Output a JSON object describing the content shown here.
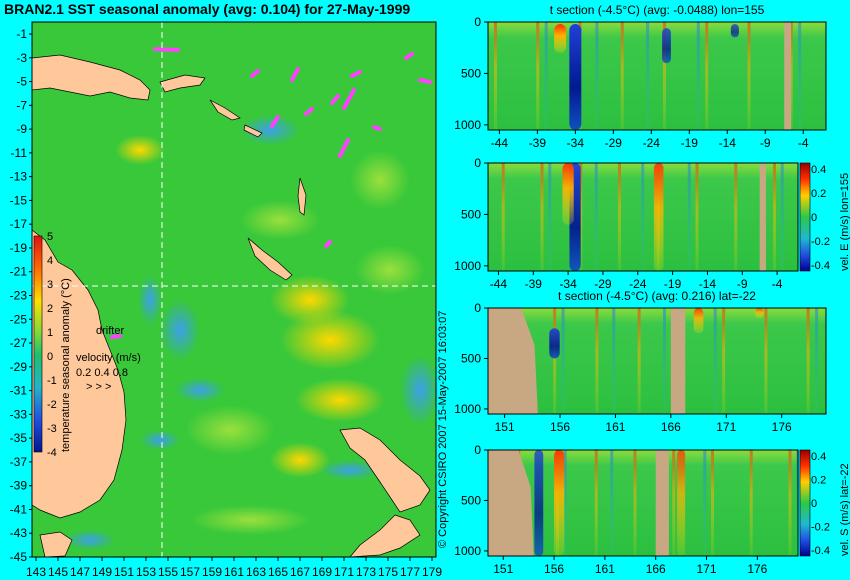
{
  "main_title": "BRAN2.1 SST seasonal anomaly (avg: 0.104) for 27-May-1999",
  "copyright": "© Copyright CSIRO 2007  15-May-2007 16:03:07",
  "colors": {
    "background": "#00ffff",
    "land": "#ffc89a",
    "section_land": "#c8a882",
    "ocean": "#3cc83c",
    "drifter": "#ff40ff",
    "crosshair": "#ffffff"
  },
  "map": {
    "lon_ticks": [
      "143",
      "145",
      "147",
      "149",
      "151",
      "153",
      "155",
      "157",
      "159",
      "161",
      "163",
      "165",
      "167",
      "169",
      "171",
      "173",
      "175",
      "177",
      "179"
    ],
    "lat_ticks": [
      "-1",
      "-3",
      "-5",
      "-7",
      "-9",
      "-11",
      "-13",
      "-15",
      "-17",
      "-19",
      "-21",
      "-23",
      "-25",
      "-27",
      "-29",
      "-31",
      "-33",
      "-35",
      "-37",
      "-39",
      "-41",
      "-43",
      "-45"
    ],
    "colorbar_title": "temperature seasonal anomaly (°C)",
    "colorbar_ticks": [
      "5",
      "4",
      "3",
      "2",
      "1",
      "0",
      "-1",
      "-2",
      "-3",
      "-4"
    ],
    "drifter_label": "drifter",
    "velocity_title": "velocity (m/s)",
    "velocity_scale": "0.2 0.4 0.8",
    "velocity_arrows": "> > >"
  },
  "chart_data": [
    {
      "type": "heatmap",
      "title": "t section (-4.5°C) (avg: -0.0488) lon=155",
      "x_ticks": [
        "-44",
        "-39",
        "-34",
        "-29",
        "-24",
        "-19",
        "-14",
        "-9",
        "-4"
      ],
      "y_ticks": [
        "0",
        "500",
        "1000"
      ],
      "xlim": [
        -45.5,
        -1
      ],
      "ylim": [
        1050,
        0
      ],
      "features": [
        {
          "x": -34,
          "depth_top": 20,
          "depth_bottom": 1050,
          "anomaly": "negative",
          "strength": 1.0
        },
        {
          "x": -36,
          "depth_top": 20,
          "depth_bottom": 300,
          "anomaly": "positive",
          "strength": 1.0
        },
        {
          "x": -22,
          "depth_top": 60,
          "depth_bottom": 400,
          "anomaly": "negative",
          "strength": 0.6
        },
        {
          "x": -13,
          "depth_top": 20,
          "depth_bottom": 150,
          "anomaly": "negative",
          "strength": 0.5
        }
      ]
    },
    {
      "type": "heatmap",
      "title": "",
      "x_ticks": [
        "-44",
        "-39",
        "-34",
        "-29",
        "-24",
        "-19",
        "-14",
        "-9",
        "-4"
      ],
      "y_ticks": [
        "0",
        "500",
        "1000"
      ],
      "xlim": [
        -45.5,
        -1
      ],
      "ylim": [
        1050,
        0
      ],
      "colorbar_label": "vel. E (m/s) lon=155",
      "colorbar_ticks": [
        "0.4",
        "0.2",
        "0",
        "-0.2",
        "-0.4"
      ],
      "features": [
        {
          "x": -33,
          "depth_top": 0,
          "depth_bottom": 1050,
          "anomaly": "negative",
          "strength": 0.9
        },
        {
          "x": -34,
          "depth_top": 0,
          "depth_bottom": 600,
          "anomaly": "positive",
          "strength": 0.9
        },
        {
          "x": -21,
          "depth_top": 0,
          "depth_bottom": 1050,
          "anomaly": "positive",
          "strength": 0.7
        }
      ]
    },
    {
      "type": "heatmap",
      "title": "t section (-4.5°C) (avg: 0.216) lat=-22",
      "x_ticks": [
        "151",
        "156",
        "161",
        "166",
        "171",
        "176"
      ],
      "y_ticks": [
        "0",
        "500",
        "1000"
      ],
      "xlim": [
        149.5,
        180
      ],
      "ylim": [
        1050,
        0
      ],
      "features": [
        {
          "x": 155.5,
          "depth_top": 200,
          "depth_bottom": 500,
          "anomaly": "negative",
          "strength": 0.8
        },
        {
          "x": 168.5,
          "depth_top": 0,
          "depth_bottom": 250,
          "anomaly": "positive",
          "strength": 0.7
        },
        {
          "x": 174,
          "depth_top": 0,
          "depth_bottom": 100,
          "anomaly": "positive",
          "strength": 0.6
        }
      ]
    },
    {
      "type": "heatmap",
      "title": "",
      "x_ticks": [
        "151",
        "156",
        "161",
        "166",
        "171",
        "176"
      ],
      "y_ticks": [
        "0",
        "500",
        "1000"
      ],
      "xlim": [
        149.5,
        180
      ],
      "ylim": [
        1050,
        0
      ],
      "colorbar_label": "vel. S (m/s) lat=-22",
      "colorbar_ticks": [
        "0.4",
        "0.2",
        "0",
        "-0.2",
        "-0.4"
      ],
      "features": [
        {
          "x": 156.5,
          "depth_top": 0,
          "depth_bottom": 1050,
          "anomaly": "positive",
          "strength": 0.8
        },
        {
          "x": 154.5,
          "depth_top": 0,
          "depth_bottom": 1050,
          "anomaly": "negative",
          "strength": 0.6
        },
        {
          "x": 168.5,
          "depth_top": 0,
          "depth_bottom": 1050,
          "anomaly": "positive",
          "strength": 0.5
        }
      ]
    }
  ]
}
